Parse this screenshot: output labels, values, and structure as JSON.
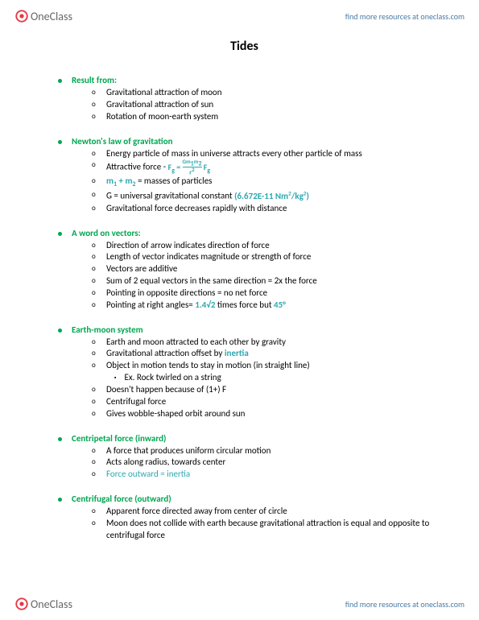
{
  "brand": {
    "name": "OneClass",
    "link_text": "find more resources at oneclass.com"
  },
  "title": "Tides",
  "sections": [
    {
      "heading": "Result from:",
      "items": [
        {
          "text": "Gravitational attraction of moon"
        },
        {
          "text": "Gravitational attraction of sun"
        },
        {
          "text": "Rotation of moon-earth system"
        }
      ]
    },
    {
      "heading": "Newton's law of gravitation",
      "items": [
        {
          "text": "Energy particle of mass in universe attracts every other particle of mass"
        },
        {
          "html": "Attractive force - <span class='formula'>F<sub>g</sub> = <span style='display:inline-block;vertical-align:middle;text-align:center;line-height:0.8'><span style='display:block;border-bottom:1px solid #2aa8b0;font-size:7px'>Gm<sub>1</sub>m<sub>2</sub></span><span style='display:block;font-size:8px'>r<sup>2</sup></span></span> F<sub>g</sub></span>"
        },
        {
          "html": "<span class='teal-b'>m<sub>1</sub> + m<sub>2</sub></span> = masses of particles"
        },
        {
          "html": "G = universal gravitational constant <span class='teal-b'>(6.672E-11 Nm<sup>2</sup>/kg<sup>2</sup>)</span>"
        },
        {
          "text": "Gravitational force decreases rapidly with distance"
        }
      ]
    },
    {
      "heading": "A word on vectors:",
      "items": [
        {
          "text": "Direction of arrow indicates direction of force"
        },
        {
          "text": "Length of vector indicates magnitude or strength of force"
        },
        {
          "text": "Vectors are additive"
        },
        {
          "text": "Sum of 2 equal vectors in the same direction = 2x the force"
        },
        {
          "text": "Pointing in opposite directions = no net force"
        },
        {
          "html": "Pointing at right angles= <span class='teal-b'>1.4√2</span> times force but <span class='teal-b'>45°</span>"
        }
      ]
    },
    {
      "heading": "Earth-moon system",
      "items": [
        {
          "text": "Earth and moon attracted to each other by gravity"
        },
        {
          "html": "Gravitational attraction offset by <span class='teal-b'>inertia</span>"
        },
        {
          "text": "Object in motion tends to stay in motion (in straight line)",
          "children": [
            {
              "text": "Ex. Rock twirled on a string"
            }
          ]
        },
        {
          "text": "Doesn't happen because of (1+) F"
        },
        {
          "text": "Centrifugal force"
        },
        {
          "text": "Gives wobble-shaped orbit around sun"
        }
      ]
    },
    {
      "heading": "Centripetal force (inward)",
      "items": [
        {
          "text": "A force that produces uniform circular motion"
        },
        {
          "text": "Acts along radius, towards center"
        },
        {
          "html": "<span class='teal'>Force outward = inertia</span>"
        }
      ]
    },
    {
      "heading": "Centrifugal force (outward)",
      "items": [
        {
          "text": "Apparent force directed away from center of circle"
        },
        {
          "text": "Moon does not collide with earth because gravitational attraction is equal and opposite to centrifugal force"
        }
      ]
    }
  ]
}
